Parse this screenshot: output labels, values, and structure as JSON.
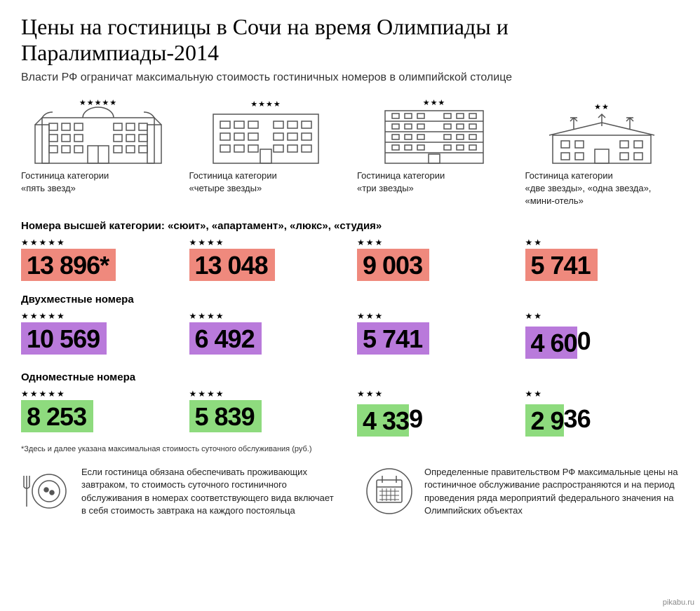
{
  "title": "Цены на гостиницы в Сочи на время Олимпиады и Паралимпиады-2014",
  "subtitle": "Власти РФ ограничат максимальную стоимость гостиничных номеров в олимпийской столице",
  "hotel_categories": [
    {
      "stars": 5,
      "label_line1": "Гостиница категории",
      "label_line2": "«пять звезд»"
    },
    {
      "stars": 4,
      "label_line1": "Гостиница категории",
      "label_line2": "«четыре звезды»"
    },
    {
      "stars": 3,
      "label_line1": "Гостиница категории",
      "label_line2": "«три звезды»"
    },
    {
      "stars": 2,
      "label_line1": "Гостиница категории",
      "label_line2": "«две звезды», «одна звезда», «мини-отель»"
    }
  ],
  "sections": [
    {
      "label": "Номера высшей категории: «сюит», «апартамент», «люкс», «студия»",
      "color": "#ef897d",
      "prices": [
        {
          "stars": 5,
          "value": "13 896*",
          "overflow": ""
        },
        {
          "stars": 4,
          "value": "13 048",
          "overflow": ""
        },
        {
          "stars": 3,
          "value": "9 003",
          "overflow": ""
        },
        {
          "stars": 2,
          "value": "5 741",
          "overflow": ""
        }
      ]
    },
    {
      "label": "Двухместные номера",
      "color": "#b97adb",
      "prices": [
        {
          "stars": 5,
          "value": "10 569",
          "overflow": ""
        },
        {
          "stars": 4,
          "value": "6 492",
          "overflow": ""
        },
        {
          "stars": 3,
          "value": "5 741",
          "overflow": ""
        },
        {
          "stars": 2,
          "value": "4 60",
          "overflow": "0"
        }
      ]
    },
    {
      "label": "Одноместные номера",
      "color": "#8edb7e",
      "prices": [
        {
          "stars": 5,
          "value": "8 253",
          "overflow": ""
        },
        {
          "stars": 4,
          "value": "5 839",
          "overflow": ""
        },
        {
          "stars": 3,
          "value": "4 33",
          "overflow": "9"
        },
        {
          "stars": 2,
          "value": "2 9",
          "overflow": "36"
        }
      ]
    }
  ],
  "footnote": "*Здесь и далее указана максимальная стоимость суточного обслуживания (руб.)",
  "notes": [
    {
      "icon": "plate",
      "text": "Если гостиница обязана обеспечивать проживающих завтраком, то стоимость суточного гостиничного обслуживания в номерах соответствующего вида включает в себя стоимость завтрака на каждого постояльца"
    },
    {
      "icon": "calendar",
      "text": "Определенные правительством РФ максимальные цены на гостиничное обслуживание распространяются и на период проведения ряда мероприятий федерального значения на Олимпийских объектах"
    }
  ],
  "source": "pikabu.ru",
  "colors": {
    "text": "#000000",
    "bg": "#ffffff",
    "stroke": "#444444"
  }
}
